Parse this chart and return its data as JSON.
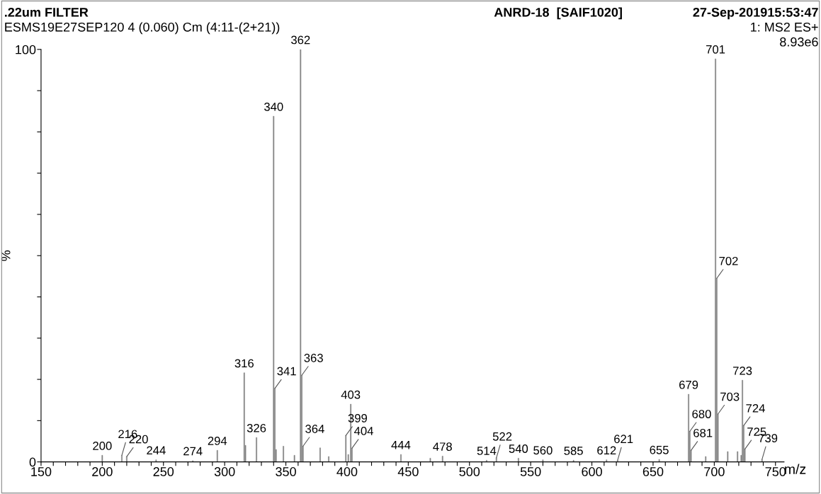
{
  "chart_data": {
    "type": "bar",
    "title": ".22um FILTER",
    "subtitle": "ANRD-18  [SAIF1020]",
    "xlabel": "m/z",
    "ylabel": "%",
    "annotations": [
      "27-Sep-201915:53:47",
      "ESMS19E27SEP120 4 (0.060) Cm (4:11-(2+21))",
      "1: MS2 ES+",
      "8.93e6",
      {
        "text": "200",
        "x": 200,
        "y": 1.6
      },
      {
        "text": "216",
        "x": 216,
        "y": 1.6
      },
      {
        "text": "220",
        "x": 220,
        "y": 1.3
      },
      {
        "text": "244",
        "x": 244,
        "y": 0.5
      },
      {
        "text": "274",
        "x": 274,
        "y": 0.3
      },
      {
        "text": "294",
        "x": 294,
        "y": 2.8
      },
      {
        "text": "316",
        "x": 316,
        "y": 21.6
      },
      {
        "text": "326",
        "x": 326,
        "y": 5.9
      },
      {
        "text": "340",
        "x": 340,
        "y": 83.8
      },
      {
        "text": "341",
        "x": 341,
        "y": 17.8
      },
      {
        "text": "362",
        "x": 362,
        "y": 100
      },
      {
        "text": "363",
        "x": 363,
        "y": 21
      },
      {
        "text": "364",
        "x": 364,
        "y": 3.8
      },
      {
        "text": "399",
        "x": 399,
        "y": 6.4
      },
      {
        "text": "403",
        "x": 403,
        "y": 14
      },
      {
        "text": "404",
        "x": 404,
        "y": 3.3
      },
      {
        "text": "444",
        "x": 444,
        "y": 1.8
      },
      {
        "text": "478",
        "x": 478,
        "y": 1.4
      },
      {
        "text": "514",
        "x": 514,
        "y": 0.4
      },
      {
        "text": "522",
        "x": 522,
        "y": 1.0
      },
      {
        "text": "540",
        "x": 540,
        "y": 0.9
      },
      {
        "text": "560",
        "x": 560,
        "y": 0.5
      },
      {
        "text": "585",
        "x": 585,
        "y": 0.4
      },
      {
        "text": "612",
        "x": 612,
        "y": 0.5
      },
      {
        "text": "621",
        "x": 621,
        "y": 0.4
      },
      {
        "text": "655",
        "x": 655,
        "y": 0.6
      },
      {
        "text": "679",
        "x": 679,
        "y": 16.4
      },
      {
        "text": "680",
        "x": 680,
        "y": 7.4
      },
      {
        "text": "681",
        "x": 681,
        "y": 2.8
      },
      {
        "text": "701",
        "x": 701,
        "y": 97.7
      },
      {
        "text": "702",
        "x": 702,
        "y": 44.5
      },
      {
        "text": "703",
        "x": 703,
        "y": 11.6
      },
      {
        "text": "723",
        "x": 723,
        "y": 19.8
      },
      {
        "text": "724",
        "x": 724,
        "y": 8.8
      },
      {
        "text": "725",
        "x": 725,
        "y": 3.1
      },
      {
        "text": "739",
        "x": 739,
        "y": 0.6
      }
    ],
    "x": [
      200,
      216,
      220,
      244,
      274,
      294,
      316,
      317,
      326,
      340,
      341,
      342,
      348,
      357,
      362,
      363,
      364,
      378,
      385,
      399,
      401,
      403,
      404,
      444,
      468,
      478,
      514,
      522,
      540,
      560,
      585,
      612,
      621,
      655,
      679,
      680,
      681,
      693,
      701,
      702,
      703,
      711,
      719,
      722,
      723,
      724,
      725,
      739
    ],
    "values": [
      1.6,
      1.6,
      1.3,
      0.5,
      0.3,
      2.8,
      21.6,
      4.0,
      5.9,
      83.8,
      17.8,
      3.0,
      3.8,
      1.6,
      100,
      21,
      3.8,
      3.4,
      1.3,
      6.4,
      1.8,
      14,
      3.3,
      1.8,
      0.9,
      1.4,
      0.4,
      1.0,
      0.9,
      0.5,
      0.4,
      0.5,
      0.4,
      0.6,
      16.4,
      7.4,
      2.8,
      1.3,
      97.7,
      44.5,
      11.6,
      2.5,
      2.5,
      1.6,
      19.8,
      8.8,
      3.1,
      0.6
    ],
    "color": "#808080",
    "xlim": [
      150,
      757
    ],
    "ylim": [
      0,
      100
    ],
    "xticks": [
      150,
      {
        "value": 160,
        "label": null
      },
      {
        "value": 170,
        "label": null
      },
      {
        "value": 180,
        "label": null
      },
      {
        "value": 190,
        "label": null
      },
      200,
      {
        "value": 210,
        "label": null
      },
      {
        "value": 220,
        "label": null
      },
      {
        "value": 230,
        "label": null
      },
      {
        "value": 240,
        "label": null
      },
      250,
      {
        "value": 260,
        "label": null
      },
      {
        "value": 270,
        "label": null
      },
      {
        "value": 280,
        "label": null
      },
      {
        "value": 290,
        "label": null
      },
      300,
      {
        "value": 310,
        "label": null
      },
      {
        "value": 320,
        "label": null
      },
      {
        "value": 330,
        "label": null
      },
      {
        "value": 340,
        "label": null
      },
      350,
      {
        "value": 360,
        "label": null
      },
      {
        "value": 370,
        "label": null
      },
      {
        "value": 380,
        "label": null
      },
      {
        "value": 390,
        "label": null
      },
      400,
      {
        "value": 410,
        "label": null
      },
      {
        "value": 420,
        "label": null
      },
      {
        "value": 430,
        "label": null
      },
      {
        "value": 440,
        "label": null
      },
      450,
      {
        "value": 460,
        "label": null
      },
      {
        "value": 470,
        "label": null
      },
      {
        "value": 480,
        "label": null
      },
      {
        "value": 490,
        "label": null
      },
      500,
      {
        "value": 510,
        "label": null
      },
      {
        "value": 520,
        "label": null
      },
      {
        "value": 530,
        "label": null
      },
      {
        "value": 540,
        "label": null
      },
      550,
      {
        "value": 560,
        "label": null
      },
      {
        "value": 570,
        "label": null
      },
      {
        "value": 580,
        "label": null
      },
      {
        "value": 590,
        "label": null
      },
      600,
      {
        "value": 610,
        "label": null
      },
      {
        "value": 620,
        "label": null
      },
      {
        "value": 630,
        "label": null
      },
      {
        "value": 640,
        "label": null
      },
      650,
      {
        "value": 660,
        "label": null
      },
      {
        "value": 670,
        "label": null
      },
      {
        "value": 680,
        "label": null
      },
      {
        "value": 690,
        "label": null
      },
      700,
      {
        "value": 710,
        "label": null
      },
      {
        "value": 720,
        "label": null
      },
      {
        "value": 730,
        "label": null
      },
      {
        "value": 740,
        "label": null
      },
      750
    ],
    "yticks": [
      0,
      {
        "value": 10,
        "label": null
      },
      {
        "value": 20,
        "label": null
      },
      {
        "value": 30,
        "label": null
      },
      {
        "value": 40,
        "label": null
      },
      {
        "value": 50,
        "label": null
      },
      {
        "value": 60,
        "label": null
      },
      {
        "value": 70,
        "label": null
      },
      {
        "value": 80,
        "label": null
      },
      {
        "value": 90,
        "label": null
      },
      100
    ],
    "grid": false
  }
}
